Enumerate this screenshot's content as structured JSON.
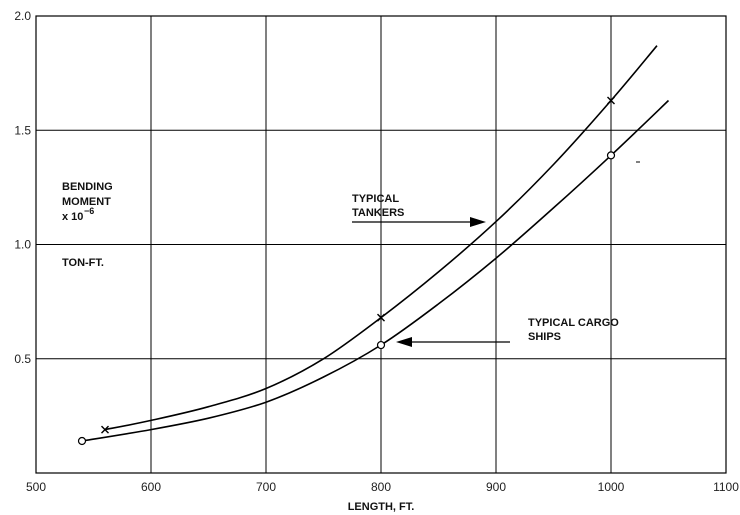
{
  "chart_data": {
    "type": "line",
    "xlabel": "LENGTH, FT.",
    "ylabel_lines": [
      "BENDING",
      "MOMENT",
      "x 10",
      "−6",
      "TON-FT."
    ],
    "xlim": [
      500,
      1100
    ],
    "ylim": [
      0,
      2.0
    ],
    "x_ticks": [
      "500",
      "600",
      "700",
      "800",
      "900",
      "1000",
      "1100"
    ],
    "y_ticks": [
      "0.5",
      "1.0",
      "1.5",
      "2.0"
    ],
    "grid": true,
    "series": [
      {
        "name": "TYPICAL TANKERS",
        "marker": "x",
        "x": [
          560,
          600,
          650,
          700,
          750,
          800,
          850,
          900,
          950,
          1000,
          1040
        ],
        "y": [
          0.19,
          0.23,
          0.29,
          0.37,
          0.5,
          0.68,
          0.88,
          1.1,
          1.35,
          1.63,
          1.87
        ],
        "marked": [
          [
            560,
            0.19
          ],
          [
            800,
            0.68
          ],
          [
            1000,
            1.63
          ]
        ]
      },
      {
        "name": "TYPICAL CARGO SHIPS",
        "marker": "circle",
        "x": [
          540,
          600,
          650,
          700,
          750,
          800,
          850,
          900,
          950,
          1000,
          1050
        ],
        "y": [
          0.14,
          0.19,
          0.24,
          0.31,
          0.42,
          0.56,
          0.74,
          0.94,
          1.16,
          1.39,
          1.63
        ],
        "marked": [
          [
            540,
            0.14
          ],
          [
            800,
            0.56
          ],
          [
            1000,
            1.39
          ]
        ]
      }
    ],
    "annotations": [
      {
        "lines": [
          "TYPICAL",
          "TANKERS"
        ]
      },
      {
        "lines": [
          "TYPICAL CARGO",
          "SHIPS"
        ]
      }
    ]
  }
}
